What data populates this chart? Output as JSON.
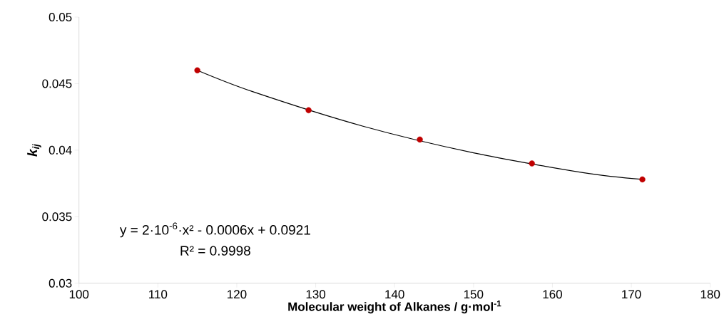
{
  "chart_data": {
    "type": "scatter",
    "xlabel": "Molecular weight of Alkanes / g·mol$^{-1}$",
    "ylabel": "k$_{ij}$",
    "xlim": [
      100,
      180
    ],
    "xticks": [
      100,
      110,
      120,
      130,
      140,
      150,
      160,
      170,
      180
    ],
    "ylim": [
      0.03,
      0.05
    ],
    "yticks": [
      0.03,
      0.035,
      0.04,
      0.045,
      0.05
    ],
    "series": [
      {
        "type": "scatter",
        "color": "#c00000",
        "marker": "circle",
        "x": [
          115,
          129.1,
          143.2,
          157.4,
          171.4
        ],
        "values": [
          0.046,
          0.043,
          0.0408,
          0.039,
          0.0378
        ]
      },
      {
        "type": "line",
        "color": "#000000",
        "marker": "none",
        "line_style": "solid",
        "x": [
          115,
          122,
          136,
          150,
          164,
          171.4
        ],
        "values": [
          0.046,
          0.0444,
          0.0418,
          0.0398,
          0.0383,
          0.0378
        ]
      }
    ],
    "annotations": [
      "y = 2·10$^{-6}$·x² - 0.0006x + 0.0921",
      "R² = 0.9998"
    ]
  }
}
